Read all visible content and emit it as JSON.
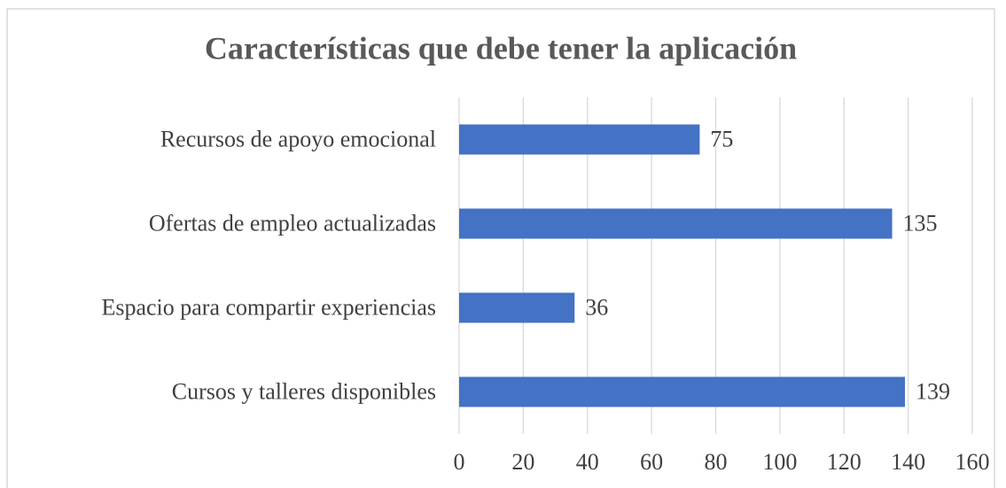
{
  "chart_data": {
    "type": "bar",
    "orientation": "horizontal",
    "title": "Características que debe tener la aplicación",
    "categories": [
      "Recursos de apoyo emocional",
      "Ofertas de empleo actualizadas",
      "Espacio para compartir experiencias",
      "Cursos y talleres disponibles"
    ],
    "values": [
      75,
      135,
      36,
      139
    ],
    "color": "#4472c4",
    "xlim": [
      0,
      160
    ],
    "xticks": [
      0,
      20,
      40,
      60,
      80,
      100,
      120,
      140,
      160
    ],
    "grid": true
  }
}
